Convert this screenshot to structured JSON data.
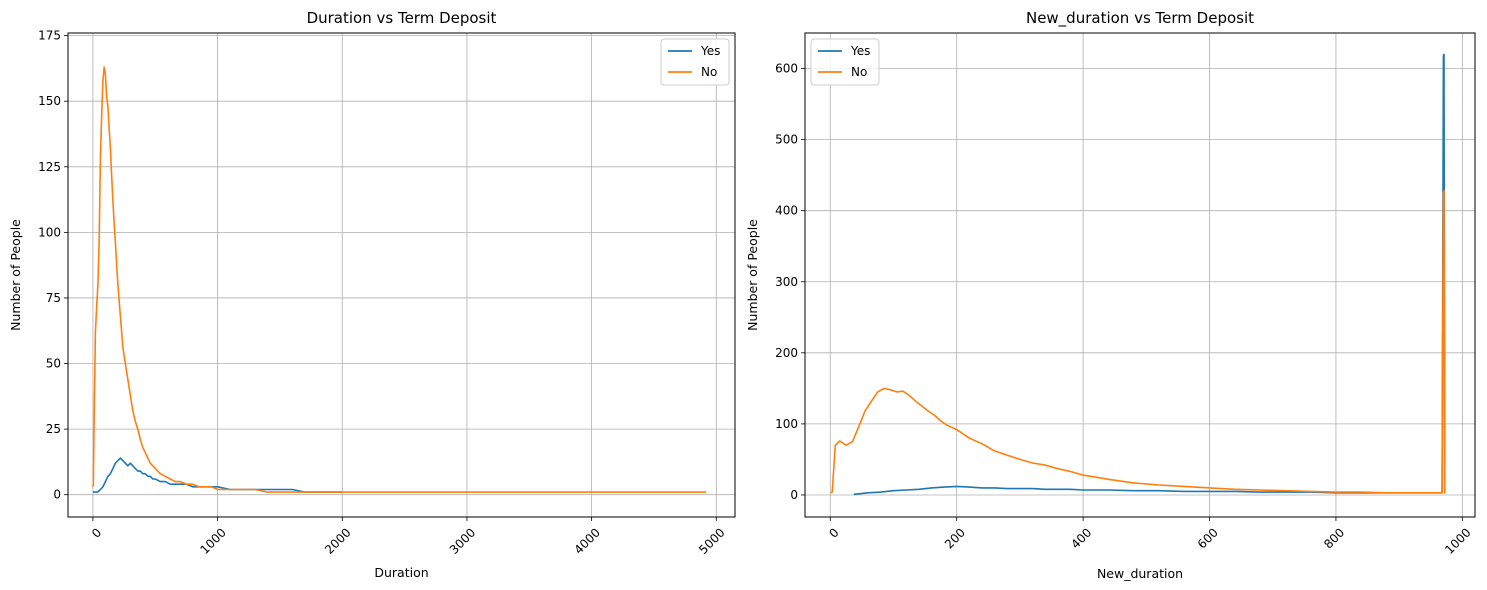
{
  "chart_data": [
    {
      "type": "line",
      "title": "Duration vs Term Deposit",
      "xlabel": "Duration",
      "ylabel": "Number of People",
      "xlim": [
        -200,
        5150
      ],
      "ylim": [
        -8.5,
        176
      ],
      "xticks": [
        0,
        1000,
        2000,
        3000,
        4000,
        5000
      ],
      "xtick_labels": [
        "0",
        "1000",
        "2000",
        "3000",
        "4000",
        "5000"
      ],
      "yticks": [
        0,
        25,
        50,
        75,
        100,
        125,
        150,
        175
      ],
      "ytick_labels": [
        "0",
        "25",
        "50",
        "75",
        "100",
        "125",
        "150",
        "175"
      ],
      "xtick_rotation": 45,
      "grid": true,
      "legend_position": "upper right",
      "series": [
        {
          "name": "Yes",
          "color": "#1f77b4",
          "x": [
            0,
            37,
            60,
            80,
            100,
            120,
            140,
            160,
            180,
            200,
            220,
            240,
            260,
            280,
            300,
            320,
            340,
            360,
            380,
            400,
            420,
            440,
            460,
            480,
            500,
            540,
            580,
            620,
            660,
            700,
            750,
            800,
            850,
            900,
            950,
            1000,
            1100,
            1200,
            1300,
            1400,
            1500,
            1600,
            1700,
            1800,
            1900,
            2000
          ],
          "y": [
            1,
            1,
            2,
            3,
            5,
            7,
            8,
            10,
            12,
            13,
            14,
            13,
            12,
            11,
            12,
            11,
            10,
            9,
            9,
            8,
            8,
            7,
            7,
            6,
            6,
            5,
            5,
            4,
            4,
            4,
            4,
            3,
            3,
            3,
            3,
            3,
            2,
            2,
            2,
            2,
            2,
            2,
            1,
            1,
            1,
            1
          ]
        },
        {
          "name": "No",
          "color": "#ff7f0e",
          "x": [
            0,
            3,
            10,
            20,
            30,
            40,
            50,
            60,
            70,
            80,
            90,
            100,
            110,
            120,
            130,
            140,
            150,
            160,
            170,
            180,
            190,
            200,
            220,
            240,
            260,
            280,
            300,
            320,
            340,
            360,
            380,
            400,
            420,
            440,
            460,
            480,
            500,
            540,
            580,
            620,
            660,
            700,
            750,
            800,
            850,
            900,
            950,
            1000,
            1100,
            1200,
            1300,
            1400,
            1500,
            1600,
            1800,
            2000,
            2500,
            3000,
            3500,
            4000,
            4500,
            4918
          ],
          "y": [
            3,
            4,
            30,
            62,
            72,
            80,
            98,
            128,
            145,
            158,
            163,
            160,
            152,
            148,
            140,
            132,
            122,
            112,
            104,
            96,
            88,
            80,
            68,
            56,
            50,
            44,
            38,
            32,
            28,
            25,
            21,
            18,
            16,
            14,
            12,
            11,
            10,
            8,
            7,
            6,
            5,
            5,
            4,
            4,
            3,
            3,
            3,
            2,
            2,
            2,
            2,
            1,
            1,
            1,
            1,
            1,
            1,
            1,
            1,
            1,
            1,
            1
          ]
        }
      ]
    },
    {
      "type": "line",
      "title": "New_duration vs Term Deposit",
      "xlabel": "New_duration",
      "ylabel": "Number of People",
      "xlim": [
        -40,
        1020
      ],
      "ylim": [
        -31,
        650
      ],
      "xticks": [
        0,
        200,
        400,
        600,
        800,
        1000
      ],
      "xtick_labels": [
        "0",
        "200",
        "400",
        "600",
        "800",
        "1000"
      ],
      "yticks": [
        0,
        100,
        200,
        300,
        400,
        500,
        600
      ],
      "ytick_labels": [
        "0",
        "100",
        "200",
        "300",
        "400",
        "500",
        "600"
      ],
      "xtick_rotation": 45,
      "grid": true,
      "legend_position": "upper left",
      "series": [
        {
          "name": "Yes",
          "color": "#1f77b4",
          "x": [
            37,
            60,
            80,
            100,
            120,
            140,
            160,
            180,
            200,
            220,
            240,
            260,
            280,
            300,
            320,
            340,
            360,
            380,
            400,
            440,
            480,
            520,
            560,
            600,
            640,
            680,
            720,
            760,
            800,
            840,
            880,
            920,
            960,
            968,
            970,
            971,
            972
          ],
          "y": [
            1,
            3,
            4,
            6,
            7,
            8,
            10,
            11,
            12,
            11,
            10,
            10,
            9,
            9,
            9,
            8,
            8,
            8,
            7,
            7,
            6,
            6,
            5,
            5,
            5,
            4,
            4,
            4,
            3,
            3,
            3,
            3,
            3,
            3,
            618,
            620,
            2
          ]
        },
        {
          "name": "No",
          "color": "#ff7f0e",
          "x": [
            0,
            3,
            8,
            15,
            25,
            35,
            45,
            55,
            65,
            75,
            85,
            95,
            105,
            115,
            125,
            135,
            145,
            155,
            165,
            175,
            185,
            200,
            220,
            240,
            260,
            280,
            300,
            320,
            340,
            360,
            380,
            400,
            440,
            480,
            520,
            560,
            600,
            640,
            680,
            720,
            760,
            800,
            840,
            880,
            920,
            960,
            968,
            970,
            971,
            972
          ],
          "y": [
            3,
            4,
            70,
            76,
            70,
            75,
            96,
            118,
            132,
            145,
            150,
            148,
            145,
            146,
            140,
            132,
            125,
            118,
            112,
            104,
            98,
            92,
            80,
            72,
            62,
            56,
            50,
            45,
            42,
            37,
            33,
            28,
            22,
            17,
            14,
            12,
            10,
            8,
            7,
            6,
            5,
            4,
            4,
            3,
            3,
            3,
            3,
            425,
            428,
            2
          ]
        }
      ]
    }
  ]
}
